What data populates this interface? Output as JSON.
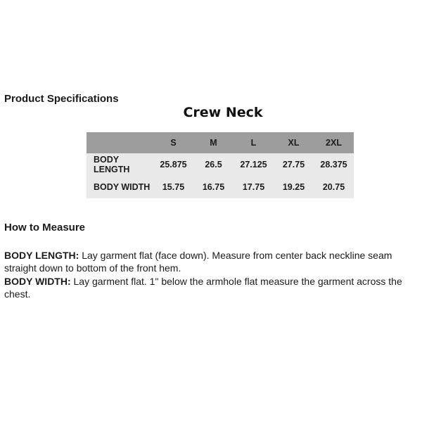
{
  "page": {
    "background": "#ffffff"
  },
  "product_specifications": {
    "heading": "Product Specifications"
  },
  "product": {
    "title": "Crew Neck"
  },
  "spec_table": {
    "header_fill": "#9d9d9d",
    "body_fill": "#e9e9e9",
    "columns": [
      "",
      "S",
      "M",
      "L",
      "XL",
      "2XL"
    ],
    "rows": [
      {
        "label": "BODY LENGTH",
        "values": [
          "25.875",
          "26.5",
          "27.125",
          "27.75",
          "28.375"
        ]
      },
      {
        "label": "BODY WIDTH",
        "values": [
          "15.75",
          "16.75",
          "17.75",
          "19.25",
          "20.75"
        ]
      }
    ]
  },
  "how_to_measure": {
    "heading": "How to Measure",
    "items": [
      {
        "term": "BODY LENGTH:",
        "description": "Lay garment flat (face down). Measure from center back neckline seam straight down to bottom of the front hem."
      },
      {
        "term": "BODY WIDTH:",
        "description": "Lay garment flat. 1\" below the armhole flat measure the garment across the chest."
      }
    ]
  }
}
